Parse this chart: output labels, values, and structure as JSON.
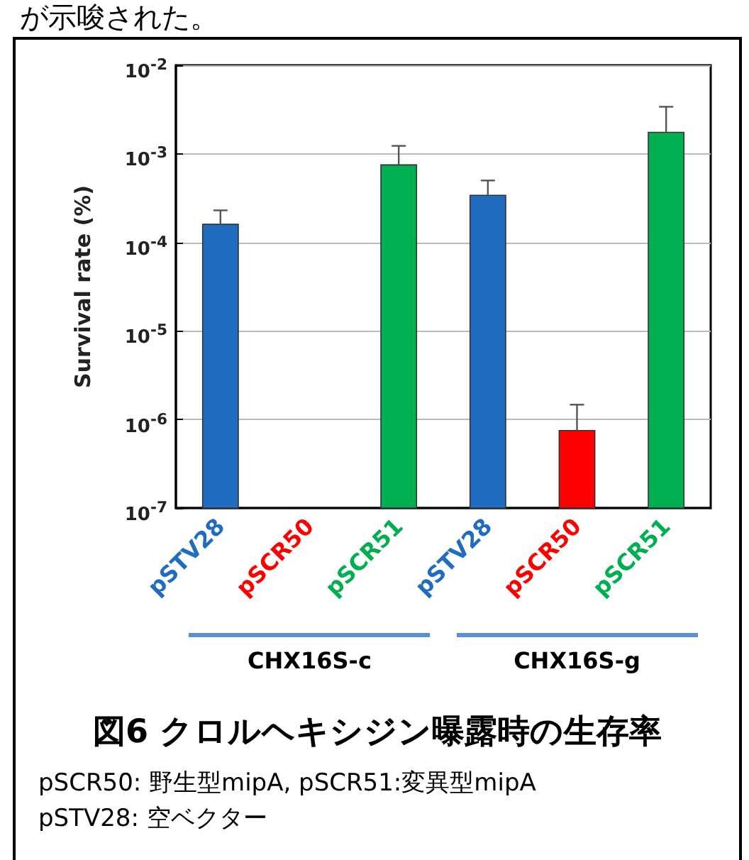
{
  "chart_data": {
    "type": "bar",
    "title": "図6  クロルヘキシジン曝露時の生存率",
    "ylabel": "Survival rate (%)",
    "categories": [
      "pSTV28",
      "pSCR50",
      "pSCR51",
      "pSTV28",
      "pSCR50",
      "pSCR51"
    ],
    "values": [
      0.00016,
      null,
      0.00075,
      0.00034,
      7.5e-07,
      0.00175
    ],
    "colors": [
      "#1f6cc0",
      "#ff0000",
      "#00b050",
      "#1f6cc0",
      "#ff0000",
      "#00b050"
    ],
    "errors": [
      [
        0.00016,
        0.00023
      ],
      null,
      [
        0.00075,
        0.00123
      ],
      [
        0.00034,
        0.0005
      ],
      [
        7.5e-07,
        1.47e-06
      ],
      [
        0.00175,
        0.0034
      ]
    ],
    "log": "y",
    "ylim": [
      1e-07,
      0.01
    ],
    "yticks": [
      {
        "value": 1e-07,
        "label": "10$^{-7}$"
      },
      {
        "value": 1e-06,
        "label": "10$^{-6}$"
      },
      {
        "value": 1e-05,
        "label": "10$^{-5}$"
      },
      {
        "value": 0.0001,
        "label": "10$^{-4}$"
      },
      {
        "value": 0.001,
        "label": "10$^{-3}$"
      },
      {
        "value": 0.01,
        "label": "10$^{-2}$"
      }
    ],
    "grid": "y",
    "annotations": [
      "が示唆された。",
      "CHX16S-c",
      "CHX16S-g",
      "pSCR50: 野生型mipA, pSCR51:変異型mipA",
      "pSTV28: 空ベクター"
    ]
  }
}
